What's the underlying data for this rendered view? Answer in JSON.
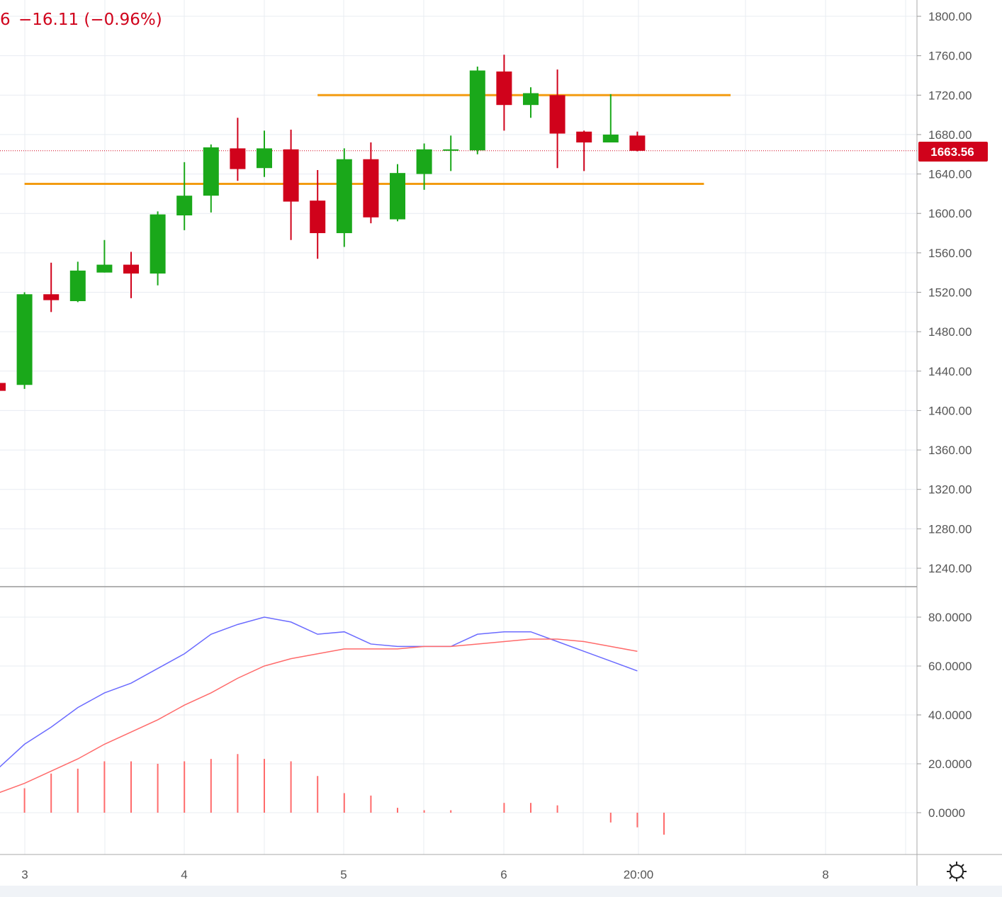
{
  "header": {
    "price_fragment": "6",
    "change_text": "−16.11 (−0.96%)"
  },
  "price_tag": {
    "label": "1663.56"
  },
  "colors": {
    "up": "#1aa81a",
    "down": "#d0021b",
    "level_line": "#f39c12",
    "k_line": "#6b6bff",
    "d_line": "#ff6b6b",
    "macd_bar": "#ff6b6b",
    "grid": "#e8ecf2",
    "axis_text": "#555555"
  },
  "x_axis_labels": [
    "3",
    "4",
    "5",
    "6",
    "20:00",
    "8"
  ],
  "settings_icon": "gear-icon",
  "chart_data": [
    {
      "type": "candlestick",
      "y_axis": {
        "ticks": [
          "1800.00",
          "1760.00",
          "1720.00",
          "1680.00",
          "1640.00",
          "1600.00",
          "1560.00",
          "1520.00",
          "1480.00",
          "1440.00",
          "1400.00",
          "1360.00",
          "1320.00",
          "1280.00",
          "1240.00"
        ],
        "range": [
          1224,
          1816
        ]
      },
      "last_price": 1663.56,
      "candles": [
        {
          "o": 1428,
          "h": 1428,
          "l": 1420,
          "c": 1420
        },
        {
          "o": 1426,
          "h": 1520,
          "l": 1422,
          "c": 1518
        },
        {
          "o": 1518,
          "h": 1550,
          "l": 1500,
          "c": 1512
        },
        {
          "o": 1511,
          "h": 1551,
          "l": 1510,
          "c": 1542
        },
        {
          "o": 1540,
          "h": 1573,
          "l": 1540,
          "c": 1548
        },
        {
          "o": 1548,
          "h": 1561,
          "l": 1514,
          "c": 1539
        },
        {
          "o": 1539,
          "h": 1602,
          "l": 1527,
          "c": 1599
        },
        {
          "o": 1598,
          "h": 1652,
          "l": 1583,
          "c": 1618
        },
        {
          "o": 1618,
          "h": 1670,
          "l": 1601,
          "c": 1667
        },
        {
          "o": 1666,
          "h": 1697,
          "l": 1633,
          "c": 1645
        },
        {
          "o": 1646,
          "h": 1684,
          "l": 1637,
          "c": 1666
        },
        {
          "o": 1665,
          "h": 1685,
          "l": 1573,
          "c": 1612
        },
        {
          "o": 1613,
          "h": 1644,
          "l": 1554,
          "c": 1580
        },
        {
          "o": 1580,
          "h": 1666,
          "l": 1566,
          "c": 1655
        },
        {
          "o": 1655,
          "h": 1672,
          "l": 1590,
          "c": 1596
        },
        {
          "o": 1594,
          "h": 1650,
          "l": 1592,
          "c": 1641
        },
        {
          "o": 1640,
          "h": 1671,
          "l": 1624,
          "c": 1665
        },
        {
          "o": 1664,
          "h": 1679,
          "l": 1643,
          "c": 1665
        },
        {
          "o": 1664,
          "h": 1749,
          "l": 1660,
          "c": 1745
        },
        {
          "o": 1744,
          "h": 1761,
          "l": 1684,
          "c": 1710
        },
        {
          "o": 1710,
          "h": 1728,
          "l": 1697,
          "c": 1722
        },
        {
          "o": 1720,
          "h": 1746,
          "l": 1646,
          "c": 1681
        },
        {
          "o": 1683,
          "h": 1684,
          "l": 1643,
          "c": 1672
        },
        {
          "o": 1672,
          "h": 1721,
          "l": 1672,
          "c": 1680
        },
        {
          "o": 1679,
          "h": 1683,
          "l": 1663,
          "c": 1663.56
        }
      ],
      "levels": [
        {
          "price": 1720,
          "from_index": 12,
          "to_index": 27.5
        },
        {
          "price": 1630,
          "from_index": 1,
          "to_index": 26.5
        }
      ]
    },
    {
      "type": "line",
      "y_axis": {
        "ticks": [
          "80.0000",
          "60.0000",
          "40.0000",
          "20.0000",
          "0.0000"
        ],
        "range": [
          -16,
          91
        ]
      },
      "series": [
        {
          "values": [
            18,
            28,
            35,
            43,
            49,
            53,
            59,
            65,
            73,
            77,
            80,
            78,
            73,
            74,
            69,
            68,
            68,
            68,
            73,
            74,
            74,
            70,
            66,
            62,
            58
          ]
        },
        {
          "values": [
            8,
            12,
            17,
            22,
            28,
            33,
            38,
            44,
            49,
            55,
            60,
            63,
            65,
            67,
            67,
            67,
            68,
            68,
            69,
            70,
            71,
            71,
            70,
            68,
            66
          ]
        },
        {
          "type": "bar",
          "values": [
            10,
            16,
            18,
            21,
            21,
            20,
            21,
            22,
            24,
            22,
            21,
            15,
            8,
            7,
            2,
            1,
            1,
            0,
            4,
            4,
            3,
            0,
            -4,
            -6,
            -9
          ]
        }
      ]
    }
  ]
}
